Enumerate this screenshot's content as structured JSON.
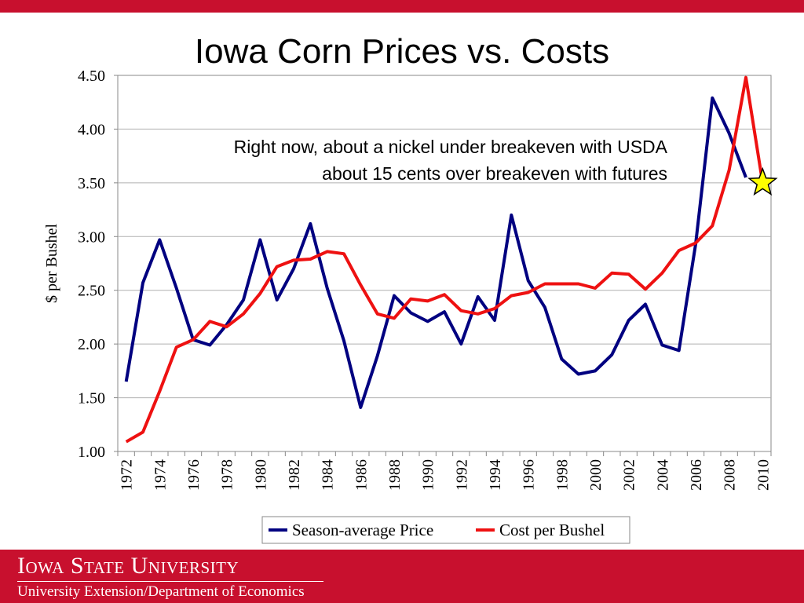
{
  "slide": {
    "title": "Iowa Corn Prices vs. Costs",
    "footer_university": "Iowa State University",
    "footer_department": "University Extension/Department of Economics",
    "accent_color": "#c8102e"
  },
  "chart_data": {
    "type": "line",
    "title": "",
    "xlabel": "",
    "ylabel": "$ per Bushel",
    "ylim": [
      1.0,
      4.5
    ],
    "yticks": [
      "1.00",
      "1.50",
      "2.00",
      "2.50",
      "3.00",
      "3.50",
      "4.00",
      "4.50"
    ],
    "xlim": [
      1972,
      2010
    ],
    "xticks": [
      "1972",
      "1974",
      "1976",
      "1978",
      "1980",
      "1982",
      "1984",
      "1986",
      "1988",
      "1990",
      "1992",
      "1994",
      "1996",
      "1998",
      "2000",
      "2002",
      "2004",
      "2006",
      "2008",
      "2010"
    ],
    "grid": "horizontal",
    "legend_position": "bottom",
    "annotation": [
      "Right now, about a nickel under breakeven with USDA",
      "about 15 cents over breakeven with futures"
    ],
    "marker": {
      "shape": "star",
      "x": 2010,
      "y": 3.5,
      "color": "#ffff00"
    },
    "series": [
      {
        "name": "Season-average Price",
        "color": "#000080",
        "x": [
          1972,
          1973,
          1974,
          1975,
          1976,
          1977,
          1978,
          1979,
          1980,
          1981,
          1982,
          1983,
          1984,
          1985,
          1986,
          1987,
          1988,
          1989,
          1990,
          1991,
          1992,
          1993,
          1994,
          1995,
          1996,
          1997,
          1998,
          1999,
          2000,
          2001,
          2002,
          2003,
          2004,
          2005,
          2006,
          2007,
          2008,
          2009
        ],
        "values": [
          1.65,
          2.57,
          2.97,
          2.52,
          2.04,
          1.99,
          2.18,
          2.41,
          2.97,
          2.41,
          2.7,
          3.12,
          2.52,
          2.03,
          1.41,
          1.89,
          2.45,
          2.29,
          2.21,
          2.3,
          2.0,
          2.44,
          2.22,
          3.2,
          2.59,
          2.34,
          1.86,
          1.72,
          1.75,
          1.9,
          2.22,
          2.37,
          1.99,
          1.94,
          2.93,
          4.29,
          3.96,
          3.55
        ]
      },
      {
        "name": "Cost per Bushel",
        "color": "#ee1111",
        "x": [
          1972,
          1973,
          1974,
          1975,
          1976,
          1977,
          1978,
          1979,
          1980,
          1981,
          1982,
          1983,
          1984,
          1985,
          1986,
          1987,
          1988,
          1989,
          1990,
          1991,
          1992,
          1993,
          1994,
          1995,
          1996,
          1997,
          1998,
          1999,
          2000,
          2001,
          2002,
          2003,
          2004,
          2005,
          2006,
          2007,
          2008,
          2009,
          2010
        ],
        "values": [
          1.09,
          1.18,
          1.56,
          1.97,
          2.04,
          2.21,
          2.16,
          2.28,
          2.47,
          2.72,
          2.78,
          2.79,
          2.86,
          2.84,
          2.55,
          2.28,
          2.24,
          2.42,
          2.4,
          2.46,
          2.31,
          2.28,
          2.33,
          2.45,
          2.48,
          2.56,
          2.56,
          2.56,
          2.52,
          2.66,
          2.65,
          2.51,
          2.66,
          2.87,
          2.94,
          3.1,
          3.62,
          4.48,
          3.5
        ]
      }
    ]
  }
}
